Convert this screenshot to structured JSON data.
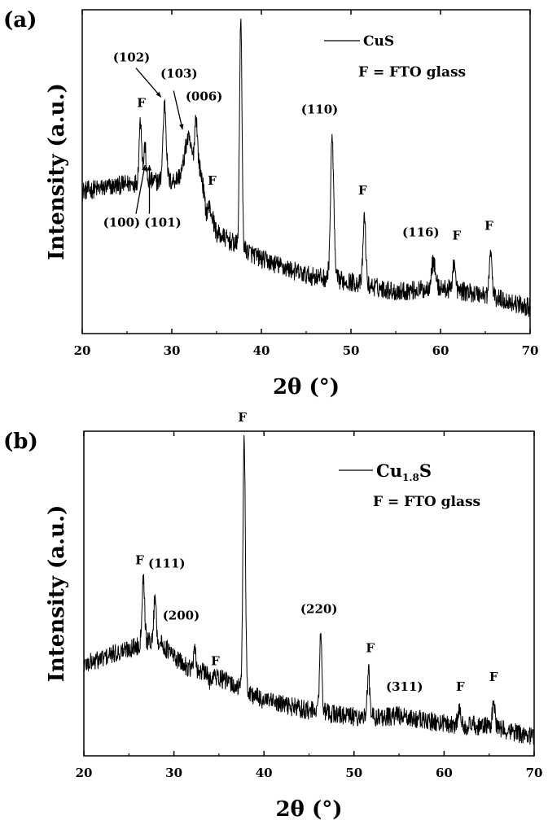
{
  "chart_data": [
    {
      "type": "line",
      "panel_label": "(a)",
      "xlabel": "2θ (°)",
      "ylabel": "Intensity (a.u.)",
      "xlim": [
        20,
        70
      ],
      "xticks": [
        20,
        30,
        40,
        50,
        60,
        70
      ],
      "legend": {
        "series_name": "CuS",
        "note": "F = FTO glass",
        "position": "top-right"
      },
      "baseline": [
        [
          20,
          0.44
        ],
        [
          27,
          0.47
        ],
        [
          30,
          0.47
        ],
        [
          33,
          0.52
        ],
        [
          35,
          0.31
        ],
        [
          40,
          0.23
        ],
        [
          45,
          0.18
        ],
        [
          50,
          0.16
        ],
        [
          55,
          0.13
        ],
        [
          60,
          0.14
        ],
        [
          65,
          0.12
        ],
        [
          70,
          0.08
        ]
      ],
      "peaks": [
        {
          "x": 26.5,
          "h": 0.66,
          "w": 0.25
        },
        {
          "x": 27.0,
          "h": 0.58,
          "w": 0.2
        },
        {
          "x": 29.2,
          "h": 0.71,
          "w": 0.3
        },
        {
          "x": 31.8,
          "h": 0.6,
          "w": 0.6
        },
        {
          "x": 32.7,
          "h": 0.67,
          "w": 0.25
        },
        {
          "x": 33.8,
          "h": 0.38,
          "w": 0.3
        },
        {
          "x": 37.7,
          "h": 0.99,
          "w": 0.22
        },
        {
          "x": 47.9,
          "h": 0.6,
          "w": 0.3
        },
        {
          "x": 51.5,
          "h": 0.36,
          "w": 0.25
        },
        {
          "x": 59.2,
          "h": 0.22,
          "w": 0.4
        },
        {
          "x": 61.5,
          "h": 0.22,
          "w": 0.25
        },
        {
          "x": 65.6,
          "h": 0.25,
          "w": 0.25
        }
      ],
      "annotations": [
        {
          "text": "F",
          "x": 26.6,
          "y": 0.7
        },
        {
          "text": "(102)",
          "x": 25.5,
          "y": 0.84
        },
        {
          "text": "(103)",
          "x": 30.8,
          "y": 0.79
        },
        {
          "text": "(006)",
          "x": 33.6,
          "y": 0.72
        },
        {
          "text": "F",
          "x": 34.5,
          "y": 0.46
        },
        {
          "text": "(100)",
          "x": 24.4,
          "y": 0.33
        },
        {
          "text": "(101)",
          "x": 29.0,
          "y": 0.33
        },
        {
          "text": "F",
          "x": 37.6,
          "y": 1.03
        },
        {
          "text": "(110)",
          "x": 46.5,
          "y": 0.68
        },
        {
          "text": "F",
          "x": 51.3,
          "y": 0.43
        },
        {
          "text": "(116)",
          "x": 57.8,
          "y": 0.3
        },
        {
          "text": "F",
          "x": 61.8,
          "y": 0.29
        },
        {
          "text": "F",
          "x": 65.4,
          "y": 0.32
        }
      ],
      "arrows": [
        {
          "from": [
            26.0,
            0.82
          ],
          "to": [
            28.8,
            0.73
          ]
        },
        {
          "from": [
            30.2,
            0.75
          ],
          "to": [
            31.2,
            0.63
          ]
        },
        {
          "from": [
            26.0,
            0.37
          ],
          "to": [
            27.0,
            0.52
          ]
        },
        {
          "from": [
            27.5,
            0.37
          ],
          "to": [
            27.5,
            0.52
          ]
        }
      ]
    },
    {
      "type": "line",
      "panel_label": "(b)",
      "xlabel": "2θ (°)",
      "ylabel": "Intensity (a.u.)",
      "xlim": [
        20,
        70
      ],
      "xticks": [
        20,
        30,
        40,
        50,
        60,
        70
      ],
      "legend": {
        "series_name": "Cu",
        "series_sub": "1.8",
        "series_suffix": "S",
        "note": "F = FTO glass",
        "position": "top-right"
      },
      "baseline": [
        [
          20,
          0.28
        ],
        [
          25,
          0.33
        ],
        [
          28,
          0.36
        ],
        [
          31,
          0.28
        ],
        [
          35,
          0.24
        ],
        [
          40,
          0.17
        ],
        [
          45,
          0.14
        ],
        [
          50,
          0.12
        ],
        [
          55,
          0.12
        ],
        [
          60,
          0.1
        ],
        [
          65,
          0.09
        ],
        [
          70,
          0.06
        ]
      ],
      "peaks": [
        {
          "x": 26.6,
          "h": 0.55,
          "w": 0.25
        },
        {
          "x": 27.9,
          "h": 0.5,
          "w": 0.2
        },
        {
          "x": 32.3,
          "h": 0.32,
          "w": 0.2
        },
        {
          "x": 33.9,
          "h": 0.23,
          "w": 0.2
        },
        {
          "x": 37.8,
          "h": 0.99,
          "w": 0.22
        },
        {
          "x": 46.3,
          "h": 0.37,
          "w": 0.22
        },
        {
          "x": 51.6,
          "h": 0.26,
          "w": 0.22
        },
        {
          "x": 54.8,
          "h": 0.13,
          "w": 0.3
        },
        {
          "x": 61.7,
          "h": 0.14,
          "w": 0.25
        },
        {
          "x": 65.5,
          "h": 0.17,
          "w": 0.22
        }
      ],
      "annotations": [
        {
          "text": "F",
          "x": 26.2,
          "y": 0.59
        },
        {
          "text": "(111)",
          "x": 29.2,
          "y": 0.58
        },
        {
          "text": "(200)",
          "x": 30.8,
          "y": 0.42
        },
        {
          "text": "F",
          "x": 34.6,
          "y": 0.28
        },
        {
          "text": "F",
          "x": 37.6,
          "y": 1.03
        },
        {
          "text": "(220)",
          "x": 46.1,
          "y": 0.44
        },
        {
          "text": "F",
          "x": 51.8,
          "y": 0.32
        },
        {
          "text": "(311)",
          "x": 55.6,
          "y": 0.2
        },
        {
          "text": "F",
          "x": 61.8,
          "y": 0.2
        },
        {
          "text": "F",
          "x": 65.5,
          "y": 0.23
        }
      ],
      "arrows": []
    }
  ]
}
